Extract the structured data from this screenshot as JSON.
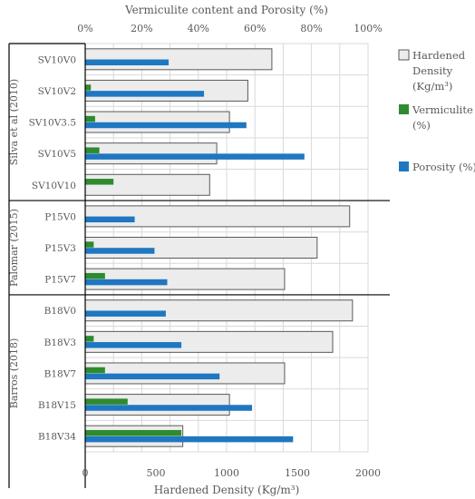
{
  "chart_data": {
    "type": "bar",
    "orientation": "horizontal",
    "top_axis_title": "Vermiculite content and Porosity (%)",
    "bottom_axis_title": "Hardened Density (Kg/m³)",
    "top_axis": {
      "range": [
        0,
        100
      ],
      "ticks": [
        "0%",
        "20%",
        "40%",
        "60%",
        "80%",
        "100%"
      ],
      "tick_values": [
        0,
        20,
        40,
        60,
        80,
        100
      ]
    },
    "bottom_axis": {
      "range": [
        0,
        2000
      ],
      "ticks": [
        "0",
        "500",
        "1000",
        "1500",
        "2000"
      ],
      "tick_values": [
        0,
        500,
        1000,
        1500,
        2000
      ]
    },
    "grid": true,
    "legend_placement": "right",
    "groups": [
      {
        "name": "Silva et al (2010)",
        "categories": [
          "SV10V0",
          "SV10V2",
          "SV10V3.5",
          "SV10V5",
          "SV10V10"
        ]
      },
      {
        "name": "Palomar (2015)",
        "categories": [
          "P15V0",
          "P15V3",
          "P15V7"
        ]
      },
      {
        "name": "Barros (2018)",
        "categories": [
          "B18V0",
          "B18V3",
          "B18V7",
          "B18V15",
          "B18V34"
        ]
      }
    ],
    "categories": [
      "SV10V0",
      "SV10V2",
      "SV10V3.5",
      "SV10V5",
      "SV10V10",
      "P15V0",
      "P15V3",
      "P15V7",
      "B18V0",
      "B18V3",
      "B18V7",
      "B18V15",
      "B18V34"
    ],
    "series": [
      {
        "name": "Hardened Density (Kg/m³)",
        "axis": "bottom",
        "color": "#ececec",
        "stroke": "#595959",
        "values": [
          1320,
          1150,
          1020,
          930,
          880,
          1870,
          1640,
          1410,
          1890,
          1750,
          1410,
          1020,
          690
        ]
      },
      {
        "name": "Vermiculite (%)",
        "axis": "top",
        "color": "#2e8b2e",
        "values": [
          0,
          2,
          3.5,
          5,
          10,
          0,
          3,
          7,
          0,
          3,
          7,
          15,
          34
        ]
      },
      {
        "name": "Porosity (%)",
        "axis": "top",
        "color": "#1f77c1",
        "values": [
          29.5,
          42,
          57,
          77.5,
          0,
          17.5,
          24.5,
          29,
          28.5,
          34,
          47.5,
          59,
          73.5
        ]
      }
    ]
  }
}
